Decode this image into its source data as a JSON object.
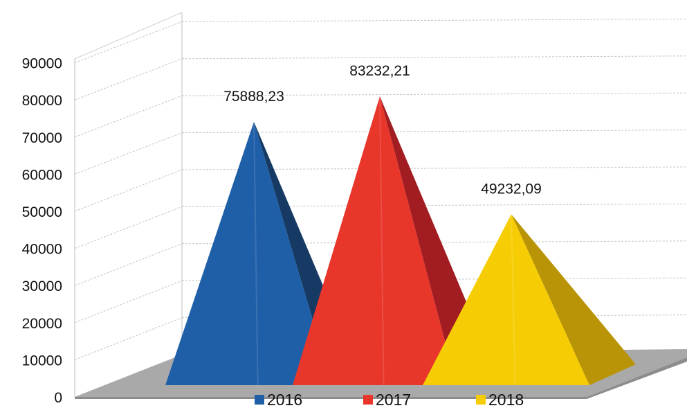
{
  "chart_data": {
    "type": "bar",
    "shape": "pyramid-3d",
    "categories": [
      ""
    ],
    "series": [
      {
        "name": "2016",
        "values": [
          75888.23
        ],
        "label": "75888,23",
        "color": "#1f5fa8",
        "shade": "#163a63"
      },
      {
        "name": "2017",
        "values": [
          83232.21
        ],
        "label": "83232,21",
        "color": "#e8362b",
        "shade": "#a21d21"
      },
      {
        "name": "2018",
        "values": [
          49232.09
        ],
        "label": "49232,09",
        "color": "#f6cd05",
        "shade": "#b99406"
      }
    ],
    "yticks": [
      "0",
      "10000",
      "20000",
      "30000",
      "40000",
      "50000",
      "60000",
      "70000",
      "80000",
      "90000"
    ],
    "ylim": [
      0,
      90000
    ],
    "grid": true,
    "legend": "bottom",
    "title": "",
    "xlabel": "",
    "ylabel": ""
  }
}
